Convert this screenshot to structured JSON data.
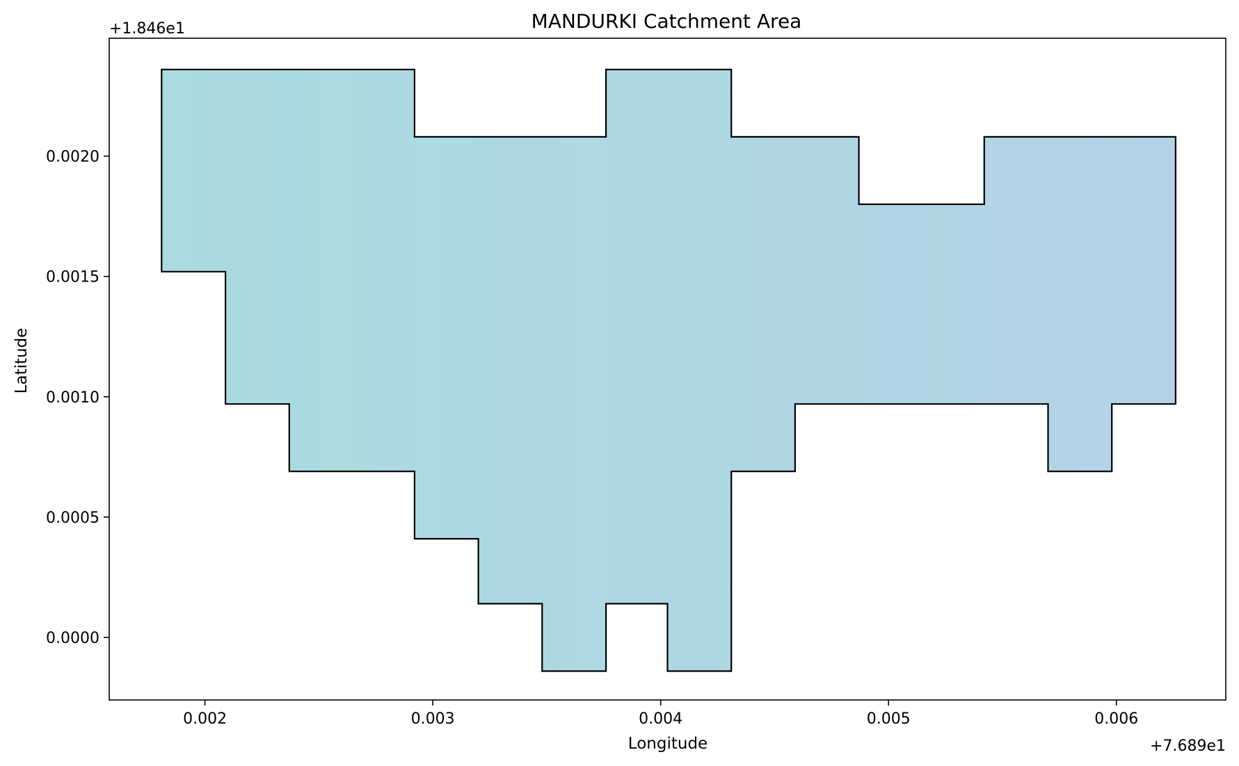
{
  "chart_data": {
    "type": "area",
    "title": "MANDURKI Catchment Area",
    "xlabel": "Longitude",
    "ylabel": "Latitude",
    "x_offset_label": "+7.689e1",
    "y_offset_label": "+1.846e1",
    "xlim": [
      0.00158,
      0.00648
    ],
    "ylim": [
      -0.00026,
      0.00249
    ],
    "x_ticks": [
      0.002,
      0.003,
      0.004,
      0.005,
      0.006
    ],
    "x_tick_labels": [
      "0.002",
      "0.003",
      "0.004",
      "0.005",
      "0.006"
    ],
    "y_ticks": [
      0.0,
      0.0005,
      0.001,
      0.0015,
      0.002
    ],
    "y_tick_labels": [
      "0.0000",
      "0.0005",
      "0.0010",
      "0.0015",
      "0.0020"
    ],
    "grid": false,
    "fill_color_left": "#a9dbe0",
    "fill_color_right": "#b4d3e6",
    "edge_color": "#000000",
    "polygon": [
      [
        0.00181,
        0.00236
      ],
      [
        0.00292,
        0.00236
      ],
      [
        0.00292,
        0.00208
      ],
      [
        0.00376,
        0.00208
      ],
      [
        0.00376,
        0.00236
      ],
      [
        0.00431,
        0.00236
      ],
      [
        0.00431,
        0.00208
      ],
      [
        0.00487,
        0.00208
      ],
      [
        0.00487,
        0.0018
      ],
      [
        0.00542,
        0.0018
      ],
      [
        0.00542,
        0.00208
      ],
      [
        0.00626,
        0.00208
      ],
      [
        0.00626,
        0.00097
      ],
      [
        0.00598,
        0.00097
      ],
      [
        0.00598,
        0.00069
      ],
      [
        0.0057,
        0.00069
      ],
      [
        0.0057,
        0.00097
      ],
      [
        0.00459,
        0.00097
      ],
      [
        0.00459,
        0.00069
      ],
      [
        0.00431,
        0.00069
      ],
      [
        0.00431,
        -0.00014
      ],
      [
        0.00403,
        -0.00014
      ],
      [
        0.00403,
        0.00014
      ],
      [
        0.00376,
        0.00014
      ],
      [
        0.00376,
        -0.00014
      ],
      [
        0.00348,
        -0.00014
      ],
      [
        0.00348,
        0.00014
      ],
      [
        0.0032,
        0.00014
      ],
      [
        0.0032,
        0.00041
      ],
      [
        0.00292,
        0.00041
      ],
      [
        0.00292,
        0.00069
      ],
      [
        0.00237,
        0.00069
      ],
      [
        0.00237,
        0.00097
      ],
      [
        0.00209,
        0.00097
      ],
      [
        0.00209,
        0.00152
      ],
      [
        0.00181,
        0.00152
      ]
    ]
  }
}
